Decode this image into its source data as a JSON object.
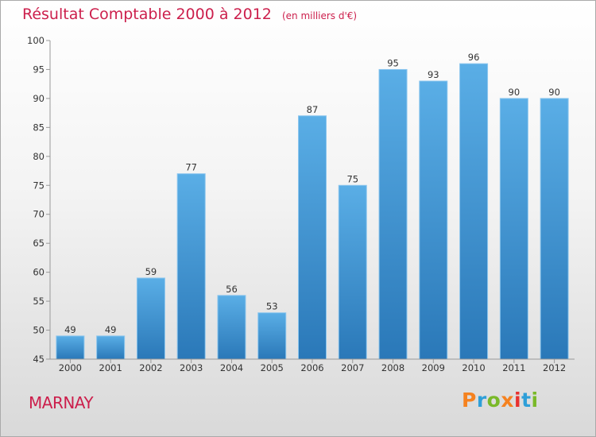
{
  "chart_data": {
    "type": "bar",
    "title": "Résultat Comptable 2000 à 2012",
    "subtitle": "(en milliers d'€)",
    "categories": [
      "2000",
      "2001",
      "2002",
      "2003",
      "2004",
      "2005",
      "2006",
      "2007",
      "2008",
      "2009",
      "2010",
      "2011",
      "2012"
    ],
    "values": [
      49,
      49,
      59,
      77,
      56,
      53,
      87,
      75,
      95,
      93,
      96,
      90,
      90
    ],
    "ylim": [
      45,
      100
    ],
    "yticks": [
      45,
      50,
      55,
      60,
      65,
      70,
      75,
      80,
      85,
      90,
      95,
      100
    ],
    "xlabel": "",
    "ylabel": "",
    "grid": false,
    "bar_color_top": "#5aaee6",
    "bar_color_bottom": "#2a78b8"
  },
  "footer": {
    "commune": "MARNAY",
    "logo": "Proxiti"
  },
  "colors": {
    "title": "#cc1f4c",
    "logo": [
      "#f58220",
      "#2e9fd8",
      "#7ab929",
      "#f58220",
      "#e8312f",
      "#2e9fd8",
      "#7ab929"
    ]
  }
}
